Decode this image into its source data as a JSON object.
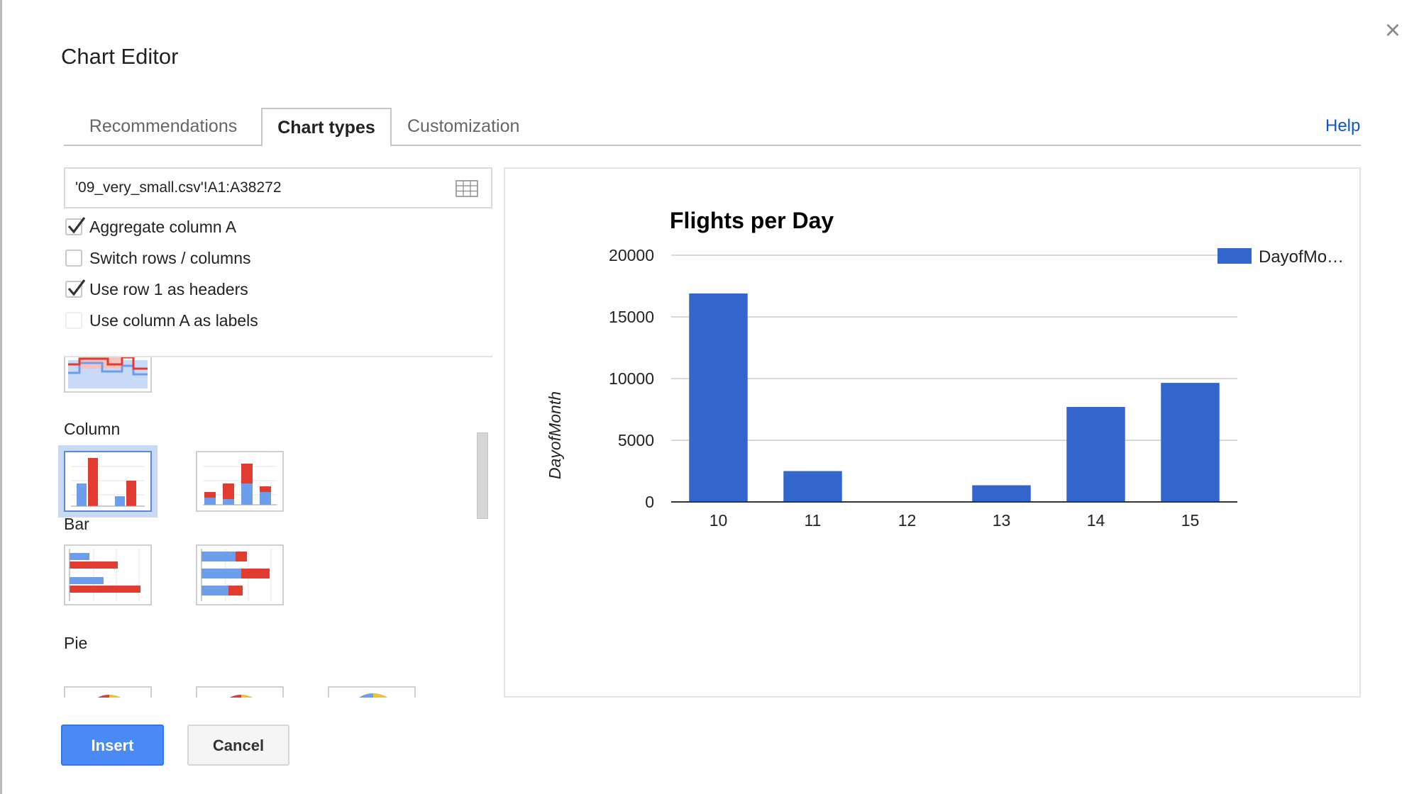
{
  "dialog": {
    "title": "Chart Editor",
    "close_icon": "×"
  },
  "tabs": [
    {
      "label": "Recommendations",
      "active": false
    },
    {
      "label": "Chart types",
      "active": true
    },
    {
      "label": "Customization",
      "active": false
    }
  ],
  "help_label": "Help",
  "data_range": {
    "value": "'09_very_small.csv'!A1:A38272",
    "icon": "grid-icon"
  },
  "options": [
    {
      "label": "Aggregate column A",
      "checked": true
    },
    {
      "label": "Switch rows / columns",
      "checked": false
    },
    {
      "label": "Use row 1 as headers",
      "checked": true
    },
    {
      "label": "Use column A as labels",
      "checked": false,
      "disabled": true
    }
  ],
  "chart_categories": [
    {
      "label": "Column"
    },
    {
      "label": "Bar"
    },
    {
      "label": "Pie"
    }
  ],
  "buttons": {
    "insert": "Insert",
    "cancel": "Cancel"
  },
  "colors": {
    "series": "#3366cc",
    "accent": "#4a8af4",
    "link": "#1155cc",
    "thumb_red": "#e03c31",
    "thumb_blue": "#6d9eeb"
  },
  "chart_data": {
    "type": "bar",
    "title": "Flights per Day",
    "ylabel": "DayofMonth",
    "xlabel": "",
    "categories": [
      "10",
      "11",
      "12",
      "13",
      "14",
      "15"
    ],
    "series": [
      {
        "name": "DayofMo…",
        "values": [
          16900,
          2500,
          0,
          1350,
          7700,
          9650
        ]
      }
    ],
    "ylim": [
      0,
      20000
    ],
    "yticks": [
      "0",
      "5000",
      "10000",
      "15000",
      "20000"
    ],
    "grid": true,
    "legend_position": "right"
  }
}
